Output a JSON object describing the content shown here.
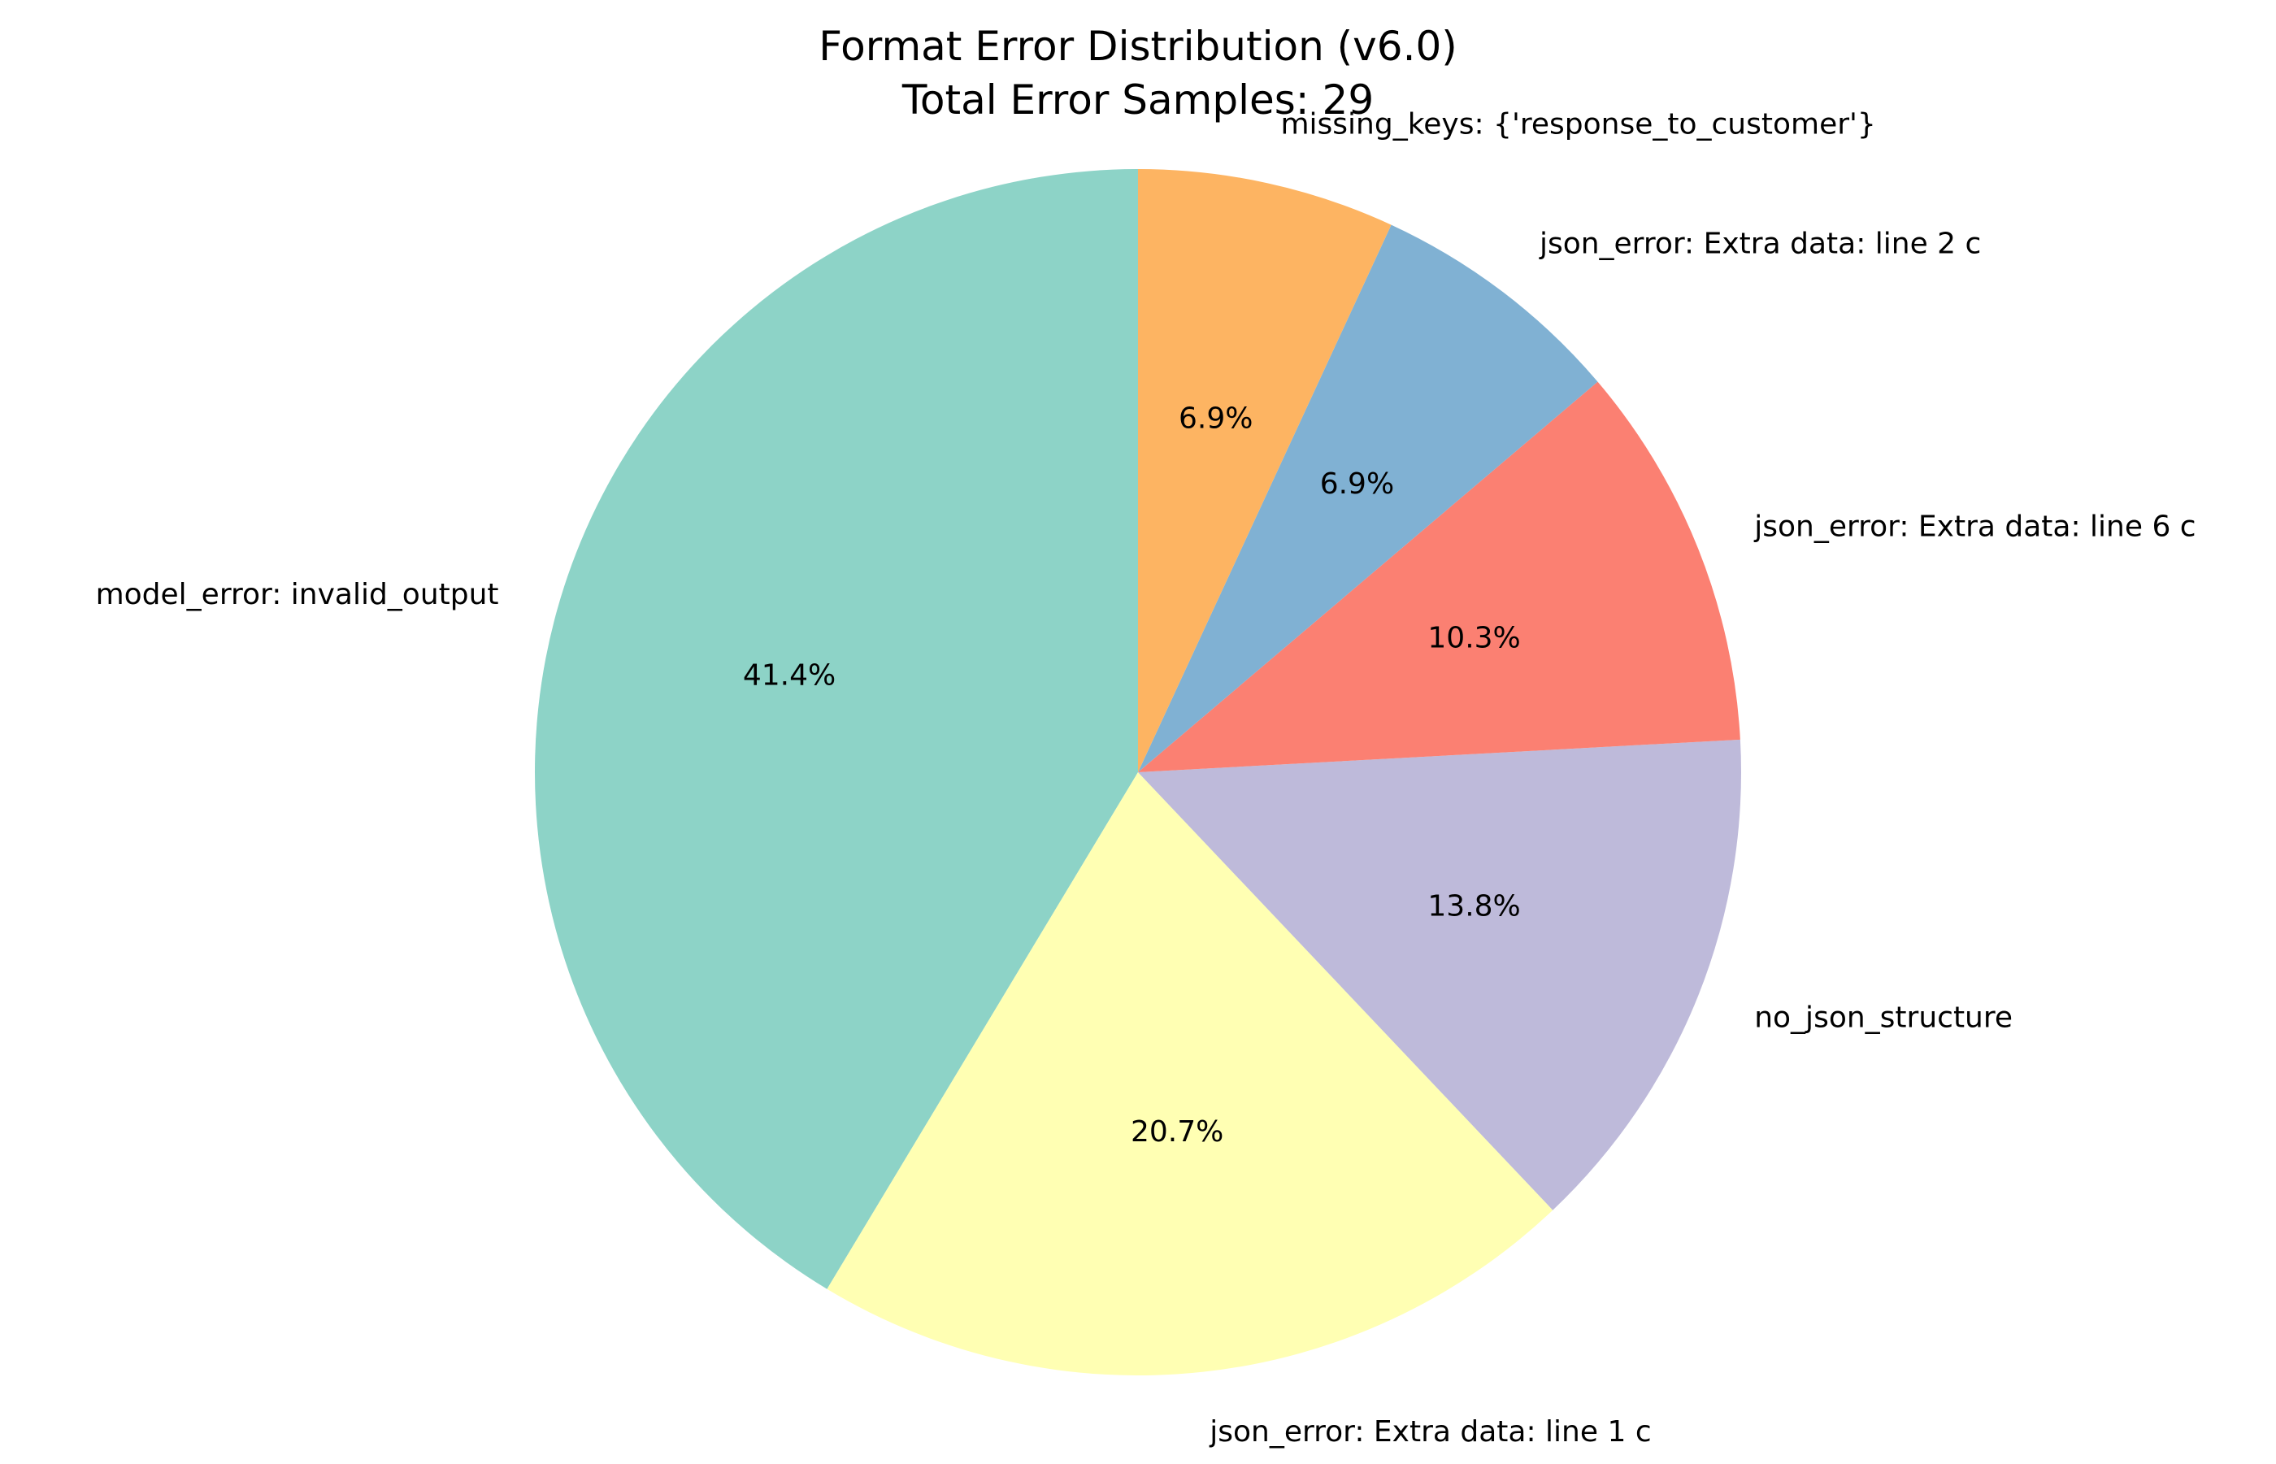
{
  "chart_data": {
    "type": "pie",
    "title": "Format Error Distribution (v6.0)",
    "subtitle": "Total Error Samples: 29",
    "total": 29,
    "start_angle_deg": 90,
    "direction": "counterclockwise",
    "slices": [
      {
        "label": "model_error: invalid_output",
        "count": 12,
        "percent_label": "41.4%",
        "color": "#8dd3c7"
      },
      {
        "label": "json_error: Extra data: line 1 c",
        "count": 6,
        "percent_label": "20.7%",
        "color": "#ffffb3"
      },
      {
        "label": "no_json_structure",
        "count": 4,
        "percent_label": "13.8%",
        "color": "#bebada"
      },
      {
        "label": "json_error: Extra data: line 6 c",
        "count": 3,
        "percent_label": "10.3%",
        "color": "#fb8072"
      },
      {
        "label": "json_error: Extra data: line 2 c",
        "count": 2,
        "percent_label": "6.9%",
        "color": "#80b1d3"
      },
      {
        "label": "missing_keys: {'response_to_customer'}",
        "count": 2,
        "percent_label": "6.9%",
        "color": "#fdb462"
      }
    ]
  }
}
